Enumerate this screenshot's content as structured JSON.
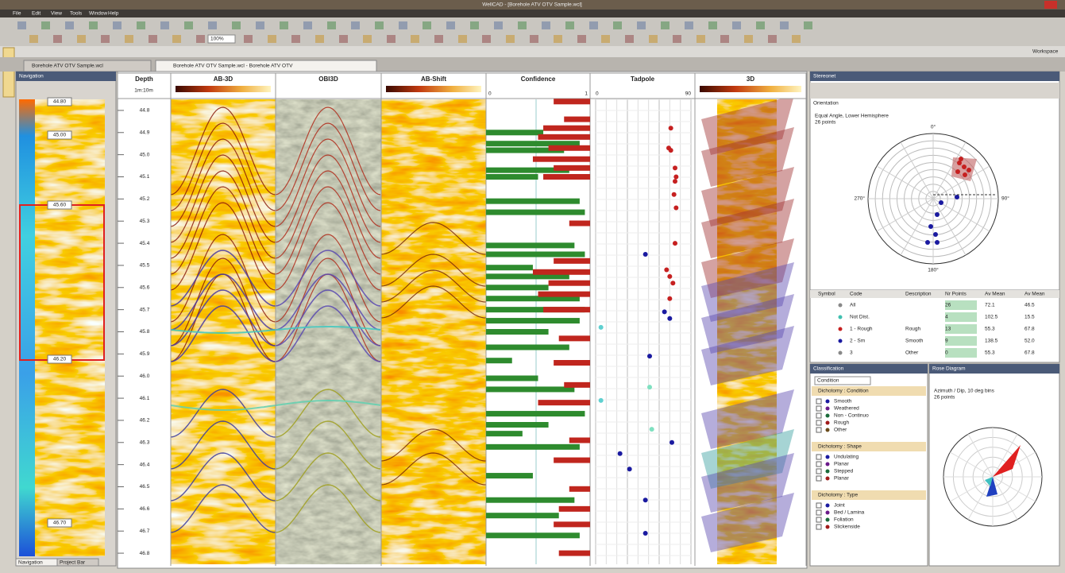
{
  "window": {
    "title": "WellCAD - [Borehole ATV OTV Sample.wcl]",
    "menu": [
      "File",
      "Edit",
      "View",
      "Tools",
      "Window",
      "Help"
    ],
    "zoom": "100%",
    "workspace": "Workspace"
  },
  "tabs": [
    "Borehole ATV OTV Sample.wcl",
    "Borehole ATV OTV Sample.wcl - Borehole ATV OTV"
  ],
  "navigation": {
    "title": "Navigation",
    "depth_labels": [
      "44.80",
      "45.00",
      "45.60",
      "46.20",
      "46.70"
    ],
    "tabs": [
      "Navigation",
      "Project Bar"
    ]
  },
  "log": {
    "headers": [
      "Depth",
      "AB-3D",
      "OBI3D",
      "AB-Shift",
      "Confidence",
      "Tadpole",
      "3D"
    ],
    "depth_unit": "1m:10m",
    "depth_lim": [
      44.75,
      46.85
    ],
    "depth_ticks": [
      44.8,
      44.9,
      {
        "value": 45,
        "label": "45.0"
      },
      45.1,
      45.2,
      45.3,
      45.4,
      45.5,
      45.6,
      45.7,
      45.8,
      45.9,
      {
        "value": 46,
        "label": "46.0"
      },
      46.1,
      46.2,
      46.3,
      46.4,
      46.5,
      46.6,
      46.7,
      46.8
    ],
    "confidence": {
      "xlim": [
        0,
        1
      ],
      "scale_labels": [
        "0",
        "1"
      ],
      "green": {
        "color": "#2e8b2e",
        "depth": [
          44.9,
          44.95,
          44.98,
          45.07,
          45.1,
          45.21,
          45.26,
          45.41,
          45.45,
          45.51,
          45.55,
          45.6,
          45.65,
          45.7,
          45.75,
          45.8,
          45.87,
          45.93,
          46.01,
          46.06,
          46.17,
          46.22,
          46.26,
          46.32,
          46.45,
          46.56,
          46.63,
          46.72
        ],
        "values": [
          0.55,
          0.9,
          0.75,
          0.8,
          0.5,
          0.9,
          0.95,
          0.85,
          0.95,
          0.45,
          0.8,
          0.6,
          0.9,
          0.95,
          0.9,
          0.6,
          0.8,
          0.25,
          0.5,
          0.85,
          0.95,
          0.6,
          0.35,
          0.9,
          0.45,
          0.85,
          0.7,
          0.9
        ]
      },
      "red": {
        "color": "#c0261e",
        "depth": [
          44.76,
          44.84,
          44.88,
          44.92,
          44.97,
          45.02,
          45.06,
          45.1,
          45.31,
          45.48,
          45.53,
          45.58,
          45.63,
          45.7,
          45.83,
          45.94,
          46.04,
          46.12,
          46.29,
          46.38,
          46.51,
          46.6,
          46.67,
          46.8
        ],
        "values": [
          0.35,
          0.25,
          0.45,
          0.5,
          0.4,
          0.55,
          0.35,
          0.45,
          0.2,
          0.35,
          0.55,
          0.4,
          0.5,
          0.45,
          0.3,
          0.35,
          0.25,
          0.5,
          0.2,
          0.35,
          0.2,
          0.3,
          0.35,
          0.3
        ]
      }
    },
    "tadpole": {
      "xlim": [
        0,
        90
      ],
      "scale_labels": [
        "0",
        "90"
      ],
      "depth": [
        44.88,
        44.97,
        44.98,
        45.06,
        45.1,
        45.12,
        45.18,
        45.24,
        45.4,
        45.45,
        45.52,
        45.55,
        45.58,
        45.65,
        45.71,
        45.74,
        45.78,
        45.91,
        46.05,
        46.11,
        46.24,
        46.3,
        46.35,
        46.42,
        46.56,
        46.71
      ],
      "dip": [
        71,
        69,
        71,
        75,
        76,
        75,
        74,
        76,
        75,
        47,
        67,
        70,
        73,
        70,
        65,
        70,
        5,
        51,
        51,
        5,
        53,
        72,
        23,
        32,
        47,
        47
      ],
      "colors": [
        "#c62020",
        "#c62020",
        "#c62020",
        "#c62020",
        "#c62020",
        "#c62020",
        "#c62020",
        "#c62020",
        "#c62020",
        "#1a1aa0",
        "#c62020",
        "#c62020",
        "#c62020",
        "#c62020",
        "#1a1aa0",
        "#1a1aa0",
        "#5fd0d0",
        "#1a1aa0",
        "#7fe0c0",
        "#5fd0d0",
        "#7fe0c0",
        "#1a1aa0",
        "#1a1aa0",
        "#1a1aa0",
        "#1a1aa0",
        "#1a1aa0"
      ]
    }
  },
  "stereonet": {
    "title": "Stereonet",
    "subtitle": "Orientation",
    "info": [
      "Equal Angle, Lower Hemisphere",
      "26 points"
    ],
    "directions": [
      "0°",
      "90°",
      "180°",
      "270°"
    ]
  },
  "table": {
    "columns": [
      "Symbol",
      "Code",
      "Description",
      "Nr Points",
      "Av Mean",
      "Av Mean"
    ],
    "rows": [
      [
        "",
        "All",
        "",
        "26",
        "72.1",
        "46.5"
      ],
      [
        "",
        "Not Dist.",
        "",
        "4",
        "102.5",
        "15.5"
      ],
      [
        "",
        "1 - Rough",
        "Rough",
        "13",
        "55.3",
        "67.8"
      ],
      [
        "",
        "2 - Sm",
        "Smooth",
        "9",
        "138.5",
        "52.0"
      ],
      [
        "",
        "3",
        "Other",
        "0",
        "55.3",
        "67.8"
      ]
    ]
  },
  "classification": {
    "title": "Classification",
    "filter": "Condition",
    "groups": [
      {
        "name": "Dichotomy : Condition",
        "items": [
          "Smooth",
          "Weathered",
          "Non - Continuo",
          "Rough",
          "Other"
        ]
      },
      {
        "name": "Dichotomy : Shape",
        "items": [
          "Undulating",
          "Planar",
          "Stepped",
          "Planar"
        ]
      },
      {
        "name": "Dichotomy : Type",
        "items": [
          "Joint",
          "Bed / Lamina",
          "Foliation",
          "Slickenside"
        ]
      }
    ]
  },
  "rose": {
    "title": "Rose Diagram",
    "info": [
      "Azimuth / Dip, 10 deg bins",
      "26 points"
    ]
  }
}
